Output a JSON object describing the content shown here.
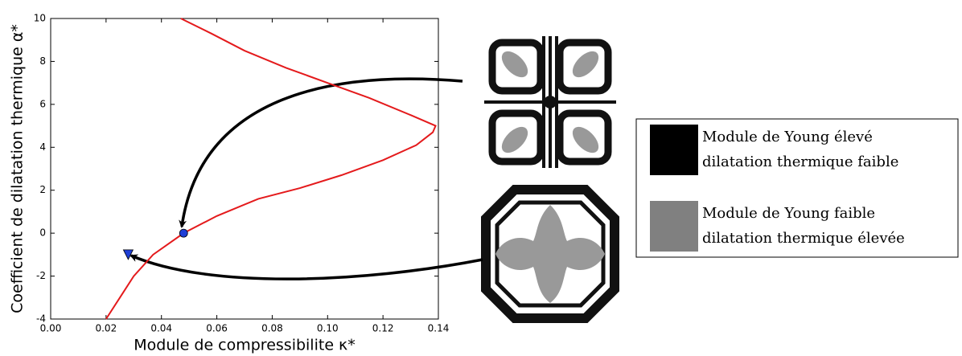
{
  "chart_data": {
    "type": "line",
    "x_label": "Module de compressibilite κ*",
    "y_label": "Coefficient de dilatation thermique α*",
    "xlim": [
      0,
      0.14
    ],
    "ylim": [
      -4,
      10
    ],
    "xticks": [
      {
        "value": 0,
        "label": "0.00"
      },
      {
        "value": 0.02,
        "label": "0.02"
      },
      {
        "value": 0.04,
        "label": "0.04"
      },
      {
        "value": 0.06,
        "label": "0.06"
      },
      {
        "value": 0.08,
        "label": "0.08"
      },
      {
        "value": 0.1,
        "label": "0.10"
      },
      {
        "value": 0.12,
        "label": "0.12"
      },
      {
        "value": 0.14,
        "label": "0.14"
      }
    ],
    "yticks": [
      -4,
      -2,
      0,
      2,
      4,
      6,
      8,
      10
    ],
    "series": [
      {
        "color": "#e41a1c",
        "marker": "none",
        "x": [
          0.02,
          0.025,
          0.03,
          0.037,
          0.048,
          0.06,
          0.075,
          0.09,
          0.105,
          0.12,
          0.132,
          0.138,
          0.139,
          0.13,
          0.115,
          0.1,
          0.085,
          0.07,
          0.058,
          0.047
        ],
        "values": [
          -4,
          -3,
          -2,
          -1,
          0,
          0.8,
          1.6,
          2.1,
          2.7,
          3.4,
          4.1,
          4.7,
          5.0,
          5.5,
          6.3,
          7.0,
          7.7,
          8.5,
          9.3,
          10
        ]
      },
      {
        "color": "#1f3fd6",
        "marker": "circle",
        "x": [
          0.048
        ],
        "values": [
          0
        ]
      },
      {
        "color": "#1f3fd6",
        "marker": "triangle-down",
        "x": [
          0.028
        ],
        "values": [
          -1
        ]
      }
    ],
    "legend": [
      {
        "color": "#000000",
        "lines": [
          "Module de Young élevé",
          "dilatation thermique faible"
        ]
      },
      {
        "color": "#808080",
        "lines": [
          "Module de Young faible",
          "dilatation thermique élevée"
        ]
      }
    ]
  }
}
